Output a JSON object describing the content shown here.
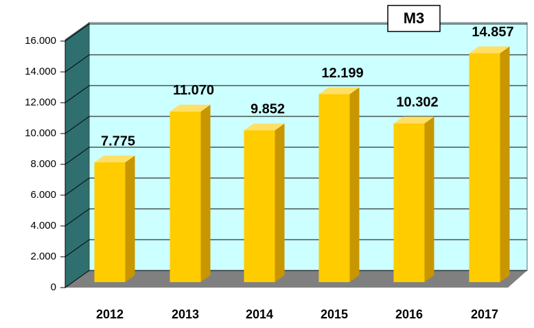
{
  "chart_data": {
    "type": "bar",
    "title": "M3",
    "categories": [
      "2012",
      "2013",
      "2014",
      "2015",
      "2016",
      "2017"
    ],
    "values": [
      7775,
      11070,
      9852,
      12199,
      10302,
      14857
    ],
    "value_labels": [
      "7.775",
      "11.070",
      "9.852",
      "12.199",
      "10.302",
      "14.857"
    ],
    "color": "#ffcc00",
    "ylim": [
      0,
      16000
    ],
    "yticks": [
      0,
      {
        "value": 2000,
        "label": "2.000"
      },
      {
        "value": 4000,
        "label": "4.000"
      },
      {
        "value": 6000,
        "label": "6.000"
      },
      {
        "value": 8000,
        "label": "8.000"
      },
      {
        "value": 10000,
        "label": "10.000"
      },
      {
        "value": 12000,
        "label": "12.000"
      },
      {
        "value": 14000,
        "label": "14.000"
      },
      {
        "value": 16000,
        "label": "16.000"
      }
    ],
    "grid": true
  }
}
